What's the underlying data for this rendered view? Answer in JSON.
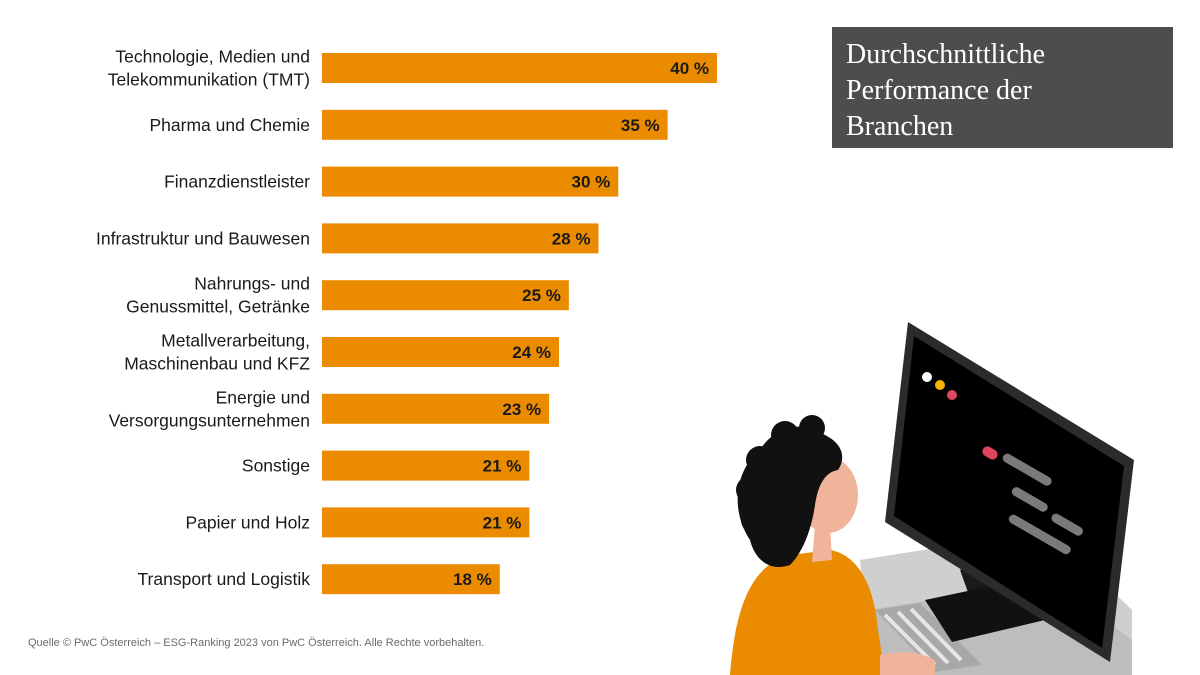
{
  "colors": {
    "bar": "#EB8C00",
    "title_bg": "#4d4d4d",
    "text": "#1a1a1a"
  },
  "title": "Durchschnittliche\nPerformance der\nBranchen",
  "source": "Quelle © PwC Österreich – ESG-Ranking 2023 von PwC Österreich. Alle Rechte vorbehalten.",
  "illustration": {
    "icon": "woman-at-computer-illustration"
  },
  "chart_data": {
    "type": "bar",
    "orientation": "horizontal",
    "categories": [
      [
        "Technologie, Medien und",
        "Telekommunikation (TMT)"
      ],
      [
        "Pharma und Chemie"
      ],
      [
        "Finanzdienstleister"
      ],
      [
        "Infrastruktur und Bauwesen"
      ],
      [
        "Nahrungs- und",
        "Genussmittel, Getränke"
      ],
      [
        "Metallverarbeitung,",
        "Maschinenbau und KFZ"
      ],
      [
        "Energie und",
        "Versorgungsunternehmen"
      ],
      [
        "Sonstige"
      ],
      [
        "Papier und Holz"
      ],
      [
        "Transport und Logistik"
      ]
    ],
    "values": [
      40,
      35,
      30,
      28,
      25,
      24,
      23,
      21,
      21,
      18
    ],
    "value_labels": [
      "40 %",
      "35 %",
      "30 %",
      "28 %",
      "25 %",
      "24 %",
      "23 %",
      "21 %",
      "21 %",
      "18 %"
    ],
    "unit": "%",
    "xlim": [
      0,
      40
    ],
    "grid": false,
    "legend": "none"
  }
}
